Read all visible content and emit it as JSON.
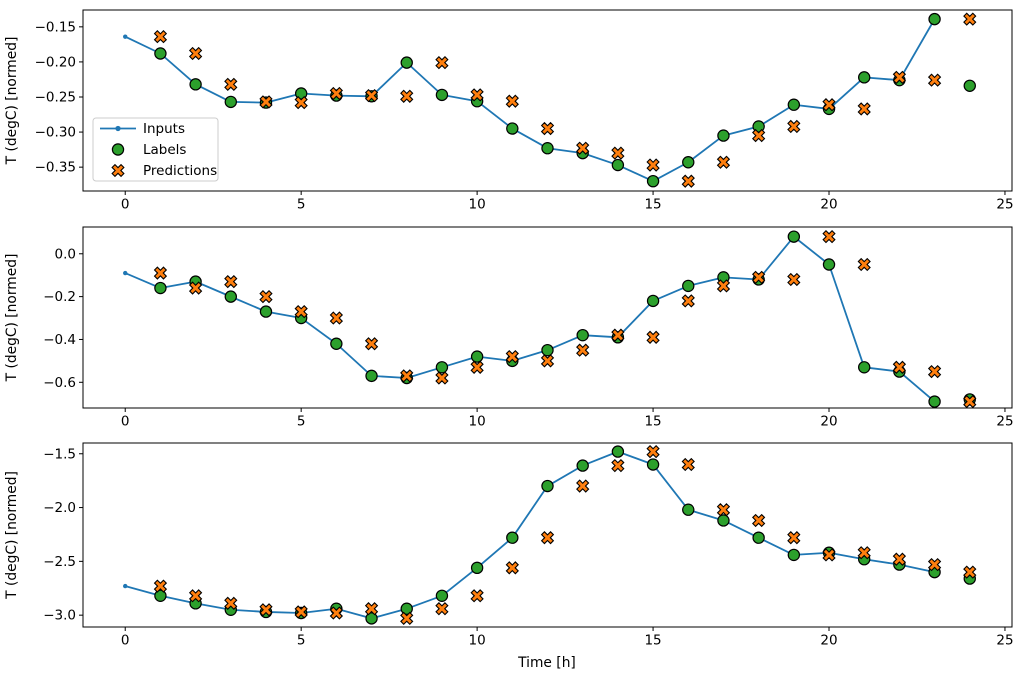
{
  "figure": {
    "background": "#ffffff",
    "xlabel": "Time [h]",
    "ylabel": "T (degC) [normed]"
  },
  "chart_data": {
    "type": "line",
    "subtype": "line-plus-scatter, 3 stacked panels (time-series forecasting: inputs / labels / baseline predictions)",
    "title": "",
    "xlabel": "Time [h]",
    "ylabel": "T (degC) [normed]",
    "grid": false,
    "xlim": [
      -1.2,
      25.2
    ],
    "x_ticks": [
      0,
      5,
      10,
      15,
      20,
      25
    ],
    "x_tick_labels": [
      "0",
      "5",
      "10",
      "15",
      "20",
      "25"
    ],
    "colors": {
      "inputs_line": "#1f77b4",
      "labels_fill": "#2ca02c",
      "predictions_fill": "#ff7f0e",
      "marker_edge": "#000000",
      "legend_border": "#cccccc",
      "axes": "#000000"
    },
    "legend": {
      "position": "left of first subplot, lower-left area",
      "entries": [
        {
          "label": "Inputs",
          "marker": "line-with-dot",
          "color": "#1f77b4"
        },
        {
          "label": "Labels",
          "marker": "filled-circle",
          "color": "#2ca02c"
        },
        {
          "label": "Predictions",
          "marker": "filled-x",
          "color": "#ff7f0e"
        }
      ]
    },
    "subplots": [
      {
        "ylabel": "T (degC) [normed]",
        "ylim": [
          -0.384,
          -0.126
        ],
        "y_ticks": [
          -0.15,
          -0.2,
          -0.25,
          -0.3,
          -0.35
        ],
        "y_tick_labels": [
          "−0.15",
          "−0.20",
          "−0.25",
          "−0.30",
          "−0.35"
        ],
        "series": {
          "inputs": {
            "x": [
              0,
              1,
              2,
              3,
              4,
              5,
              6,
              7,
              8,
              9,
              10,
              11,
              12,
              13,
              14,
              15,
              16,
              17,
              18,
              19,
              20,
              21,
              22,
              23
            ],
            "y": [
              -0.164,
              -0.188,
              -0.232,
              -0.257,
              -0.258,
              -0.245,
              -0.248,
              -0.249,
              -0.201,
              -0.247,
              -0.256,
              -0.295,
              -0.323,
              -0.33,
              -0.347,
              -0.37,
              -0.343,
              -0.305,
              -0.292,
              -0.261,
              -0.267,
              -0.222,
              -0.226,
              -0.139
            ]
          },
          "labels": {
            "x": [
              1,
              2,
              3,
              4,
              5,
              6,
              7,
              8,
              9,
              10,
              11,
              12,
              13,
              14,
              15,
              16,
              17,
              18,
              19,
              20,
              21,
              22,
              23,
              24
            ],
            "y": [
              -0.188,
              -0.232,
              -0.257,
              -0.258,
              -0.245,
              -0.248,
              -0.249,
              -0.201,
              -0.247,
              -0.256,
              -0.295,
              -0.323,
              -0.33,
              -0.347,
              -0.37,
              -0.343,
              -0.305,
              -0.292,
              -0.261,
              -0.267,
              -0.222,
              -0.226,
              -0.139,
              -0.234
            ]
          },
          "predictions": {
            "x": [
              1,
              2,
              3,
              4,
              5,
              6,
              7,
              8,
              9,
              10,
              11,
              12,
              13,
              14,
              15,
              16,
              17,
              18,
              19,
              20,
              21,
              22,
              23,
              24
            ],
            "y": [
              -0.164,
              -0.188,
              -0.232,
              -0.257,
              -0.258,
              -0.245,
              -0.248,
              -0.249,
              -0.201,
              -0.247,
              -0.256,
              -0.295,
              -0.323,
              -0.33,
              -0.347,
              -0.37,
              -0.343,
              -0.305,
              -0.292,
              -0.261,
              -0.267,
              -0.222,
              -0.226,
              -0.139
            ]
          }
        }
      },
      {
        "ylabel": "T (degC) [normed]",
        "ylim": [
          -0.72,
          0.125
        ],
        "y_ticks": [
          0.0,
          -0.2,
          -0.4,
          -0.6
        ],
        "y_tick_labels": [
          "0.0",
          "−0.2",
          "−0.4",
          "−0.6"
        ],
        "series": {
          "inputs": {
            "x": [
              0,
              1,
              2,
              3,
              4,
              5,
              6,
              7,
              8,
              9,
              10,
              11,
              12,
              13,
              14,
              15,
              16,
              17,
              18,
              19,
              20,
              21,
              22,
              23
            ],
            "y": [
              -0.09,
              -0.16,
              -0.13,
              -0.2,
              -0.27,
              -0.3,
              -0.42,
              -0.57,
              -0.58,
              -0.53,
              -0.48,
              -0.5,
              -0.45,
              -0.38,
              -0.39,
              -0.22,
              -0.15,
              -0.11,
              -0.12,
              0.08,
              -0.05,
              -0.53,
              -0.55,
              -0.69
            ]
          },
          "labels": {
            "x": [
              1,
              2,
              3,
              4,
              5,
              6,
              7,
              8,
              9,
              10,
              11,
              12,
              13,
              14,
              15,
              16,
              17,
              18,
              19,
              20,
              21,
              22,
              23,
              24
            ],
            "y": [
              -0.16,
              -0.13,
              -0.2,
              -0.27,
              -0.3,
              -0.42,
              -0.57,
              -0.58,
              -0.53,
              -0.48,
              -0.5,
              -0.45,
              -0.38,
              -0.39,
              -0.22,
              -0.15,
              -0.11,
              -0.12,
              0.08,
              -0.05,
              -0.53,
              -0.55,
              -0.69,
              -0.68
            ]
          },
          "predictions": {
            "x": [
              1,
              2,
              3,
              4,
              5,
              6,
              7,
              8,
              9,
              10,
              11,
              12,
              13,
              14,
              15,
              16,
              17,
              18,
              19,
              20,
              21,
              22,
              23,
              24
            ],
            "y": [
              -0.09,
              -0.16,
              -0.13,
              -0.2,
              -0.27,
              -0.3,
              -0.42,
              -0.57,
              -0.58,
              -0.53,
              -0.48,
              -0.5,
              -0.45,
              -0.38,
              -0.39,
              -0.22,
              -0.15,
              -0.11,
              -0.12,
              0.08,
              -0.05,
              -0.53,
              -0.55,
              -0.69
            ]
          }
        }
      },
      {
        "ylabel": "T (degC) [normed]",
        "ylim": [
          -3.11,
          -1.4
        ],
        "y_ticks": [
          -1.5,
          -2.0,
          -2.5,
          -3.0
        ],
        "y_tick_labels": [
          "−1.5",
          "−2.0",
          "−2.5",
          "−3.0"
        ],
        "series": {
          "inputs": {
            "x": [
              0,
              1,
              2,
              3,
              4,
              5,
              6,
              7,
              8,
              9,
              10,
              11,
              12,
              13,
              14,
              15,
              16,
              17,
              18,
              19,
              20,
              21,
              22,
              23
            ],
            "y": [
              -2.73,
              -2.82,
              -2.89,
              -2.95,
              -2.97,
              -2.98,
              -2.94,
              -3.03,
              -2.94,
              -2.82,
              -2.56,
              -2.28,
              -1.8,
              -1.61,
              -1.48,
              -1.6,
              -2.02,
              -2.12,
              -2.28,
              -2.44,
              -2.42,
              -2.48,
              -2.53,
              -2.6
            ]
          },
          "labels": {
            "x": [
              1,
              2,
              3,
              4,
              5,
              6,
              7,
              8,
              9,
              10,
              11,
              12,
              13,
              14,
              15,
              16,
              17,
              18,
              19,
              20,
              21,
              22,
              23,
              24
            ],
            "y": [
              -2.82,
              -2.89,
              -2.95,
              -2.97,
              -2.98,
              -2.94,
              -3.03,
              -2.94,
              -2.82,
              -2.56,
              -2.28,
              -1.8,
              -1.61,
              -1.48,
              -1.6,
              -2.02,
              -2.12,
              -2.28,
              -2.44,
              -2.42,
              -2.48,
              -2.53,
              -2.6,
              -2.66
            ]
          },
          "predictions": {
            "x": [
              1,
              2,
              3,
              4,
              5,
              6,
              7,
              8,
              9,
              10,
              11,
              12,
              13,
              14,
              15,
              16,
              17,
              18,
              19,
              20,
              21,
              22,
              23,
              24
            ],
            "y": [
              -2.73,
              -2.82,
              -2.89,
              -2.95,
              -2.97,
              -2.98,
              -2.94,
              -3.03,
              -2.94,
              -2.82,
              -2.56,
              -2.28,
              -1.8,
              -1.61,
              -1.48,
              -1.6,
              -2.02,
              -2.12,
              -2.28,
              -2.44,
              -2.42,
              -2.48,
              -2.53,
              -2.6
            ]
          }
        }
      }
    ]
  }
}
